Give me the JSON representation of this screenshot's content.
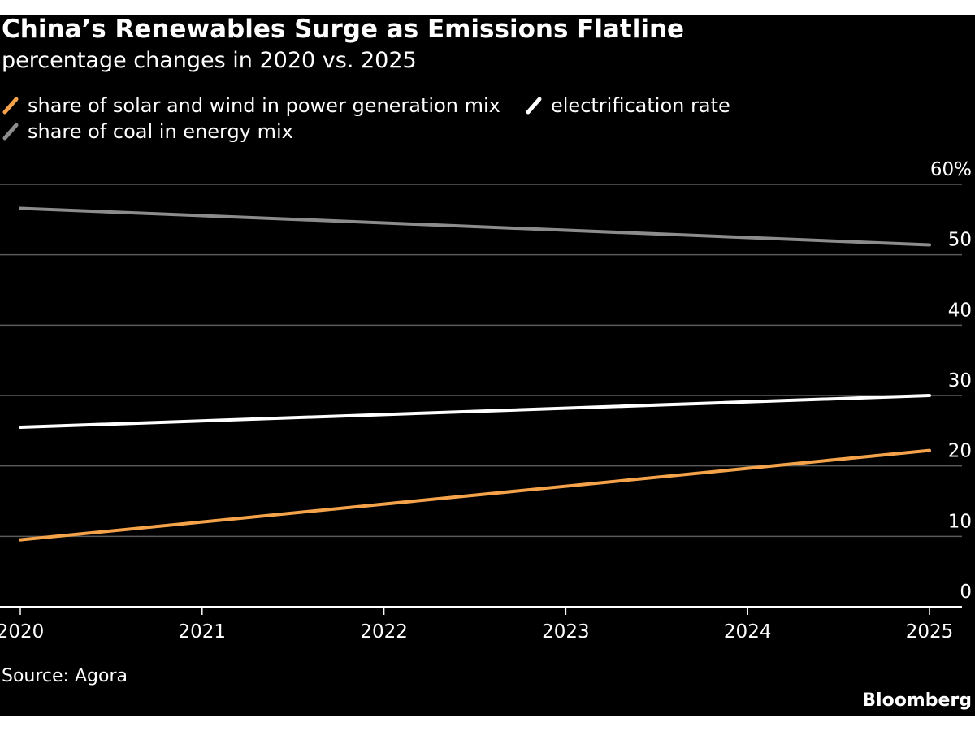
{
  "header": {
    "title": "China’s Renewables Surge as Emissions Flatline",
    "subtitle": "percentage changes in 2020 vs. 2025"
  },
  "legend": [
    {
      "label": "share of solar and wind in power generation mix",
      "color": "#f5a34a"
    },
    {
      "label": "electrification rate",
      "color": "#ffffff"
    },
    {
      "label": "share of coal in energy mix",
      "color": "#8c8c8c"
    }
  ],
  "footer": {
    "source": "Source: Agora",
    "brand": "Bloomberg"
  },
  "chart_data": {
    "type": "line",
    "title": "China’s Renewables Surge as Emissions Flatline",
    "subtitle": "percentage changes in 2020 vs. 2025",
    "x": [
      2020,
      2025
    ],
    "x_ticks": [
      "2020",
      "2021",
      "2022",
      "2023",
      "2024",
      "2025"
    ],
    "y_ticks": [
      "0",
      "10",
      "20",
      "30",
      "40",
      "50",
      "60%"
    ],
    "ylim": [
      0,
      60
    ],
    "y_axis_side": "right",
    "grid": true,
    "legend_position": "top-left",
    "series": [
      {
        "name": "share of solar and wind in power generation mix",
        "color": "#f5a34a",
        "values": [
          9.5,
          22.2
        ]
      },
      {
        "name": "electrification rate",
        "color": "#ffffff",
        "values": [
          25.5,
          30
        ]
      },
      {
        "name": "share of coal in energy mix",
        "color": "#8c8c8c",
        "values": [
          56.6,
          51.4
        ]
      }
    ]
  }
}
